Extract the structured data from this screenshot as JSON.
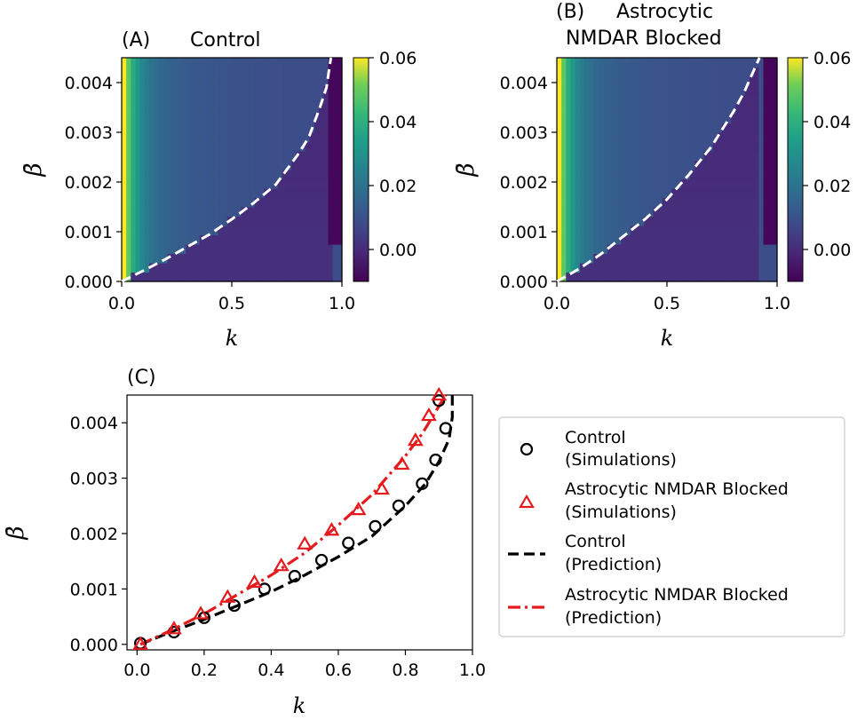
{
  "chart_data": [
    {
      "type": "heatmap",
      "panel": "(A)",
      "title": "Control",
      "xlabel": "k",
      "ylabel": "β̄",
      "xlim": [
        0.0,
        1.0
      ],
      "ylim": [
        0.0,
        0.0045
      ],
      "xticks": [
        "0.0",
        "0.5",
        "1.0"
      ],
      "yticks": [
        "0.000",
        "0.001",
        "0.002",
        "0.003",
        "0.004"
      ],
      "colorbar": {
        "range": [
          -0.01,
          0.06
        ],
        "ticks": [
          "0.00",
          "0.02",
          "0.04",
          "0.06"
        ],
        "colormap": "viridis"
      },
      "boundary": {
        "style": "white dashed",
        "k": [
          0.0,
          0.1,
          0.2,
          0.3,
          0.4,
          0.5,
          0.6,
          0.7,
          0.8,
          0.85,
          0.9,
          0.93,
          0.94,
          0.95
        ],
        "beta": [
          0.0,
          0.00022,
          0.00045,
          0.0007,
          0.00095,
          0.00125,
          0.00158,
          0.00195,
          0.00255,
          0.0029,
          0.0035,
          0.0039,
          0.0042,
          0.0045
        ]
      }
    },
    {
      "type": "heatmap",
      "panel": "(B)",
      "title_line1": "Astrocytic",
      "title_line2": "NMDAR Blocked",
      "xlabel": "k",
      "ylabel": "β̄",
      "xlim": [
        0.0,
        1.0
      ],
      "ylim": [
        0.0,
        0.0045
      ],
      "xticks": [
        "0.0",
        "0.5",
        "1.0"
      ],
      "yticks": [
        "0.000",
        "0.001",
        "0.002",
        "0.003",
        "0.004"
      ],
      "colorbar": {
        "range": [
          -0.01,
          0.06
        ],
        "ticks": [
          "0.00",
          "0.02",
          "0.04",
          "0.06"
        ],
        "colormap": "viridis"
      },
      "boundary": {
        "style": "white dashed",
        "k": [
          0.0,
          0.1,
          0.2,
          0.3,
          0.4,
          0.5,
          0.6,
          0.7,
          0.8,
          0.85,
          0.88,
          0.9,
          0.92
        ],
        "beta": [
          0.0,
          0.00025,
          0.00055,
          0.0009,
          0.00125,
          0.00165,
          0.00215,
          0.0027,
          0.0034,
          0.0038,
          0.0041,
          0.0043,
          0.0045
        ]
      }
    },
    {
      "type": "line",
      "panel": "(C)",
      "xlabel": "k",
      "ylabel": "β̄",
      "xlim": [
        -0.03,
        1.0
      ],
      "ylim": [
        -0.0001,
        0.0045
      ],
      "xticks": [
        "0.0",
        "0.2",
        "0.4",
        "0.6",
        "0.8",
        "1.0"
      ],
      "yticks": [
        "0.000",
        "0.001",
        "0.002",
        "0.003",
        "0.004"
      ],
      "series": [
        {
          "name_line1": "Control",
          "name_line2": "(Simulations)",
          "marker": "circle",
          "color": "#000000",
          "x": [
            0.01,
            0.11,
            0.2,
            0.29,
            0.38,
            0.47,
            0.55,
            0.63,
            0.71,
            0.78,
            0.85,
            0.89,
            0.92,
            0.9
          ],
          "y": [
            2e-05,
            0.00022,
            0.00048,
            0.0007,
            0.001,
            0.00123,
            0.00152,
            0.00183,
            0.00213,
            0.0025,
            0.0029,
            0.00333,
            0.0039,
            0.0044
          ]
        },
        {
          "name_line1": "Astrocytic NMDAR Blocked",
          "name_line2": "(Simulations)",
          "marker": "triangle",
          "color": "#e41a1c",
          "x": [
            0.01,
            0.11,
            0.19,
            0.27,
            0.35,
            0.43,
            0.5,
            0.58,
            0.66,
            0.73,
            0.79,
            0.83,
            0.87,
            0.9
          ],
          "y": [
            0.0,
            0.00028,
            0.00055,
            0.00085,
            0.00112,
            0.00142,
            0.00181,
            0.00206,
            0.00243,
            0.0028,
            0.00325,
            0.00368,
            0.00413,
            0.0045
          ]
        },
        {
          "name_line1": "Control",
          "name_line2": "(Prediction)",
          "style": "dashed",
          "color": "#000000",
          "x": [
            0.01,
            0.1,
            0.2,
            0.3,
            0.4,
            0.5,
            0.6,
            0.7,
            0.8,
            0.86,
            0.9,
            0.93,
            0.94,
            0.94
          ],
          "y": [
            0.0,
            0.00022,
            0.00045,
            0.0007,
            0.00095,
            0.00125,
            0.00158,
            0.00195,
            0.0025,
            0.0029,
            0.0033,
            0.0037,
            0.0041,
            0.0045
          ]
        },
        {
          "name_line1": "Astrocytic NMDAR Blocked",
          "name_line2": "(Prediction)",
          "style": "dashdot",
          "color": "#e41a1c",
          "x": [
            0.01,
            0.1,
            0.2,
            0.3,
            0.4,
            0.5,
            0.6,
            0.7,
            0.8,
            0.85,
            0.88,
            0.9,
            0.92
          ],
          "y": [
            0.0,
            0.00025,
            0.00055,
            0.0009,
            0.00125,
            0.00165,
            0.00215,
            0.0027,
            0.0034,
            0.0038,
            0.0041,
            0.0043,
            0.0045
          ]
        }
      ],
      "legend": "right"
    }
  ]
}
